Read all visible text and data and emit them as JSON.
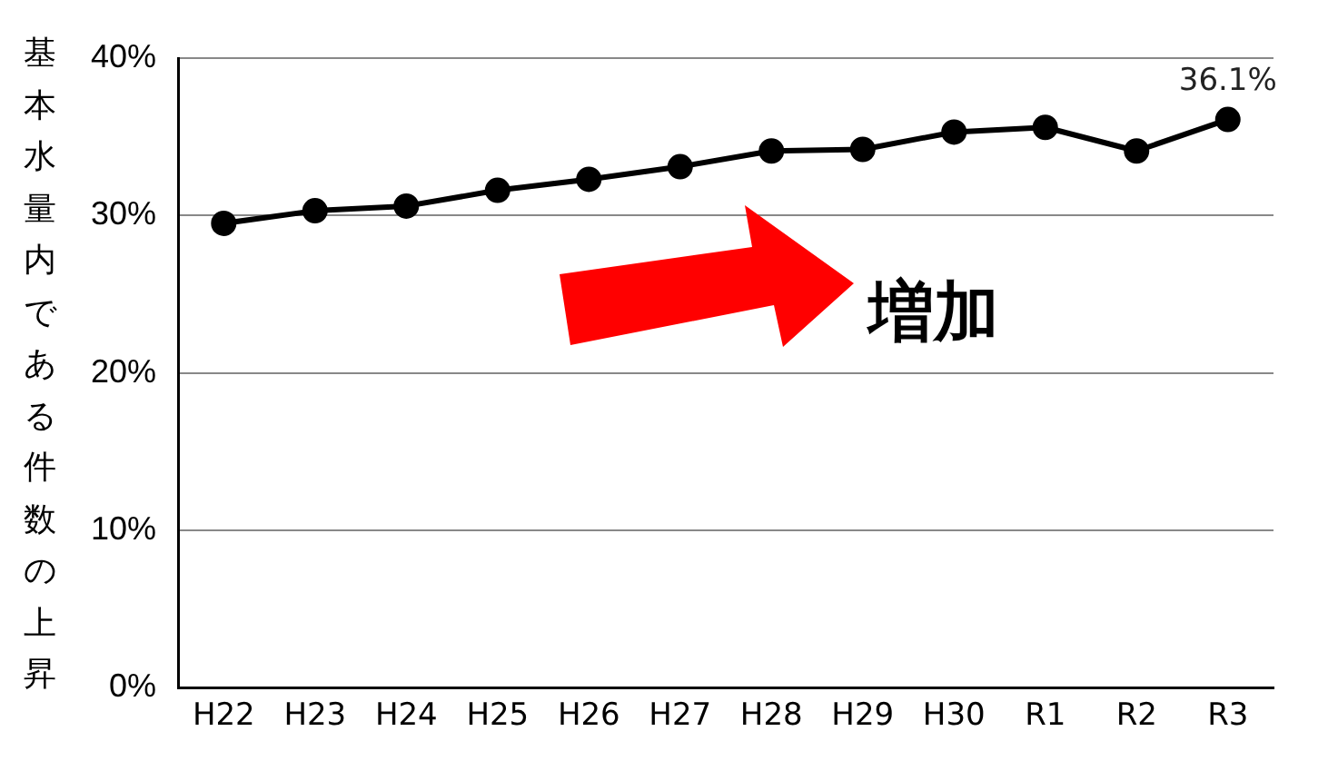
{
  "chart_data": {
    "type": "line",
    "ylabel": "基本水量内である件数の上昇",
    "categories": [
      "H22",
      "H23",
      "H24",
      "H25",
      "H26",
      "H27",
      "H28",
      "H29",
      "H30",
      "R1",
      "R2",
      "R3"
    ],
    "series": [
      {
        "color": "#000000",
        "values": [
          29.5,
          30.3,
          30.6,
          31.6,
          32.3,
          33.1,
          34.1,
          34.2,
          35.3,
          35.6,
          34.1,
          36.1
        ],
        "value_labels": [
          null,
          null,
          null,
          null,
          null,
          null,
          null,
          null,
          null,
          null,
          null,
          "36.1%"
        ]
      }
    ],
    "ylim": [
      0,
      40
    ],
    "yticks": [
      {
        "value": 0,
        "label": "0%"
      },
      {
        "value": 10,
        "label": "10%"
      },
      {
        "value": 20,
        "label": "20%"
      },
      {
        "value": 30,
        "label": "30%"
      },
      {
        "value": 40,
        "label": "40%"
      }
    ],
    "annotations": [
      "増加"
    ],
    "grid": "y",
    "legend": false,
    "marker": "circle",
    "line_style": "solid"
  }
}
